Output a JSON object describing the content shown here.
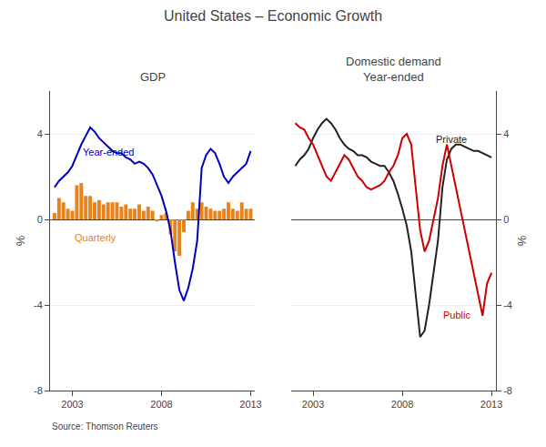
{
  "title": "United States – Economic Growth",
  "source": "Source: Thomson Reuters",
  "chart_data": [
    {
      "type": "bar",
      "title": "GDP",
      "ylabel": "%",
      "xlim": [
        2001.75,
        2013.25
      ],
      "xticks": [
        2003,
        2008,
        2013
      ],
      "ylim": [
        -8,
        6
      ],
      "yticks": [
        -8,
        -4,
        0,
        4
      ],
      "grid": true,
      "x": [
        2002.0,
        2002.25,
        2002.5,
        2002.75,
        2003.0,
        2003.25,
        2003.5,
        2003.75,
        2004.0,
        2004.25,
        2004.5,
        2004.75,
        2005.0,
        2005.25,
        2005.5,
        2005.75,
        2006.0,
        2006.25,
        2006.5,
        2006.75,
        2007.0,
        2007.25,
        2007.5,
        2007.75,
        2008.0,
        2008.25,
        2008.5,
        2008.75,
        2009.0,
        2009.25,
        2009.5,
        2009.75,
        2010.0,
        2010.25,
        2010.5,
        2010.75,
        2011.0,
        2011.25,
        2011.5,
        2011.75,
        2012.0,
        2012.25,
        2012.5,
        2012.75,
        2013.0
      ],
      "series": [
        {
          "name": "Quarterly",
          "type": "bar",
          "color": "#e8821a",
          "values": [
            0.3,
            1.0,
            0.8,
            0.5,
            0.4,
            1.6,
            1.7,
            1.1,
            1.1,
            0.8,
            0.9,
            0.7,
            0.8,
            0.8,
            0.8,
            0.6,
            0.7,
            0.5,
            0.5,
            0.7,
            0.4,
            0.6,
            0.4,
            -0.1,
            0.2,
            0.3,
            -0.7,
            -1.5,
            -1.7,
            -0.6,
            0.4,
            0.8,
            0.5,
            0.8,
            0.6,
            0.5,
            0.4,
            0.4,
            0.5,
            0.8,
            0.5,
            0.4,
            0.8,
            0.5,
            0.5
          ]
        },
        {
          "name": "Year-ended",
          "type": "line",
          "color": "#0000bb",
          "values": [
            1.5,
            1.8,
            2.0,
            2.2,
            2.5,
            3.0,
            3.5,
            3.9,
            4.3,
            4.1,
            3.8,
            3.6,
            3.4,
            3.2,
            3.1,
            3.1,
            2.9,
            2.8,
            2.6,
            2.7,
            2.6,
            2.4,
            2.1,
            1.6,
            1.1,
            0.4,
            -0.5,
            -2.0,
            -3.3,
            -3.8,
            -3.2,
            -2.3,
            -1.0,
            2.4,
            3.0,
            3.3,
            3.1,
            2.6,
            2.0,
            1.7,
            2.0,
            2.2,
            2.4,
            2.6,
            3.2
          ]
        }
      ],
      "annotations": [
        {
          "text": "Year-ended",
          "x": 2003.5,
          "y": 2.8,
          "color": "#0000bb"
        },
        {
          "text": "Quarterly",
          "x": 2003.0,
          "y": -1.2,
          "color": "#e8821a"
        }
      ]
    },
    {
      "type": "line",
      "title": "Domestic demand\nYear-ended",
      "ylabel": "%",
      "xlim": [
        2001.75,
        2013.25
      ],
      "xticks": [
        2003,
        2008,
        2013
      ],
      "ylim": [
        -8,
        6
      ],
      "yticks": [
        -8,
        -4,
        0,
        4
      ],
      "grid": true,
      "x": [
        2002.0,
        2002.25,
        2002.5,
        2002.75,
        2003.0,
        2003.25,
        2003.5,
        2003.75,
        2004.0,
        2004.25,
        2004.5,
        2004.75,
        2005.0,
        2005.25,
        2005.5,
        2005.75,
        2006.0,
        2006.25,
        2006.5,
        2006.75,
        2007.0,
        2007.25,
        2007.5,
        2007.75,
        2008.0,
        2008.25,
        2008.5,
        2008.75,
        2009.0,
        2009.25,
        2009.5,
        2009.75,
        2010.0,
        2010.25,
        2010.5,
        2010.75,
        2011.0,
        2011.25,
        2011.5,
        2011.75,
        2012.0,
        2012.25,
        2012.5,
        2012.75,
        2013.0
      ],
      "series": [
        {
          "name": "Private",
          "color": "#222222",
          "values": [
            2.5,
            2.8,
            3.0,
            3.3,
            3.8,
            4.2,
            4.5,
            4.7,
            4.5,
            4.2,
            3.8,
            3.5,
            3.3,
            3.2,
            3.0,
            3.0,
            2.9,
            2.7,
            2.6,
            2.5,
            2.5,
            2.2,
            1.8,
            1.2,
            0.5,
            -0.3,
            -1.5,
            -3.5,
            -5.5,
            -5.2,
            -4.0,
            -2.5,
            -1.0,
            1.5,
            2.8,
            3.3,
            3.5,
            3.5,
            3.4,
            3.3,
            3.2,
            3.2,
            3.1,
            3.0,
            2.9
          ]
        },
        {
          "name": "Public",
          "color": "#cc0000",
          "values": [
            4.5,
            4.3,
            4.2,
            3.8,
            3.5,
            3.0,
            2.5,
            2.0,
            1.8,
            2.2,
            2.6,
            3.0,
            2.8,
            2.4,
            2.0,
            1.8,
            1.5,
            1.4,
            1.5,
            1.6,
            1.8,
            2.2,
            2.5,
            3.0,
            3.8,
            4.0,
            3.5,
            1.5,
            -0.5,
            -1.5,
            -1.0,
            0.0,
            1.0,
            2.5,
            3.5,
            2.5,
            1.5,
            0.5,
            -0.5,
            -1.5,
            -2.5,
            -3.5,
            -4.5,
            -3.0,
            -2.5
          ]
        }
      ],
      "annotations": [
        {
          "text": "Private",
          "x": 2009.8,
          "y": 3.4,
          "color": "#222222"
        },
        {
          "text": "Public",
          "x": 2010.2,
          "y": -4.8,
          "color": "#cc0000"
        }
      ]
    }
  ]
}
